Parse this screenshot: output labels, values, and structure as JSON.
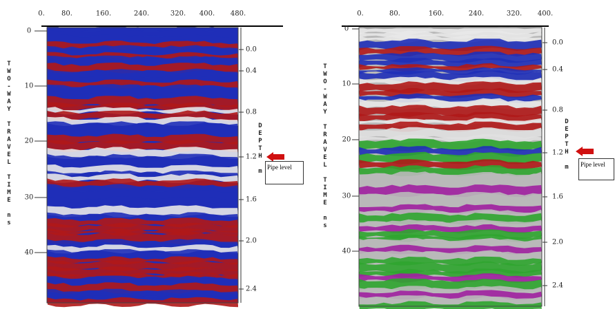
{
  "panels": [
    {
      "top_ticks": [
        "0.",
        "80.",
        "160.",
        "240.",
        "320.",
        "400.",
        "480."
      ],
      "left_ticks": [
        "0",
        "10",
        "20",
        "30",
        "40"
      ],
      "left_title": "TWO-WAY TRAVEL TIME ns",
      "right_ticks": [
        "0.0",
        "0.4",
        "0.8",
        "1.2",
        "1.6",
        "2.0",
        "2.4"
      ],
      "right_title": "DEPTH m",
      "annotation": "Pipe level"
    },
    {
      "top_ticks": [
        "0.",
        "80.",
        "160.",
        "240.",
        "320.",
        "400."
      ],
      "left_ticks": [
        "0",
        "10",
        "20",
        "30",
        "40"
      ],
      "left_title": "TWO-WAY TRAVEL TIME ns",
      "right_ticks": [
        "0.0",
        "0.4",
        "0.8",
        "1.2",
        "1.6",
        "2.0",
        "2.4"
      ],
      "right_title": "DEPTH m",
      "annotation": "Pipe level"
    }
  ]
}
